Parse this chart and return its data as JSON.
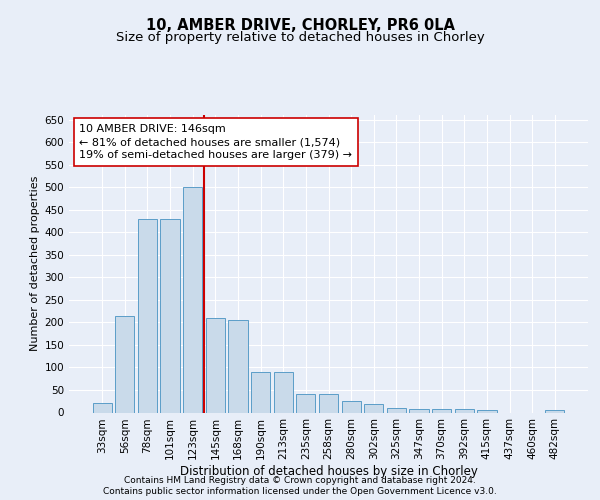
{
  "title": "10, AMBER DRIVE, CHORLEY, PR6 0LA",
  "subtitle": "Size of property relative to detached houses in Chorley",
  "xlabel": "Distribution of detached houses by size in Chorley",
  "ylabel": "Number of detached properties",
  "categories": [
    "33sqm",
    "56sqm",
    "78sqm",
    "101sqm",
    "123sqm",
    "145sqm",
    "168sqm",
    "190sqm",
    "213sqm",
    "235sqm",
    "258sqm",
    "280sqm",
    "302sqm",
    "325sqm",
    "347sqm",
    "370sqm",
    "392sqm",
    "415sqm",
    "437sqm",
    "460sqm",
    "482sqm"
  ],
  "bar_heights": [
    20,
    215,
    430,
    430,
    500,
    210,
    205,
    90,
    90,
    40,
    40,
    25,
    18,
    9,
    7,
    7,
    7,
    5,
    0,
    0,
    5
  ],
  "bar_color": "#c9daea",
  "bar_edge_color": "#5b9dc8",
  "vline_color": "#cc0000",
  "vline_pos": 4.5,
  "annotation_text_line1": "10 AMBER DRIVE: 146sqm",
  "annotation_text_line2": "← 81% of detached houses are smaller (1,574)",
  "annotation_text_line3": "19% of semi-detached houses are larger (379) →",
  "ylim": [
    0,
    660
  ],
  "yticks": [
    0,
    50,
    100,
    150,
    200,
    250,
    300,
    350,
    400,
    450,
    500,
    550,
    600,
    650
  ],
  "background_color": "#e8eef8",
  "plot_bg_color": "#e8eef8",
  "grid_color": "#ffffff",
  "title_fontsize": 10.5,
  "subtitle_fontsize": 9.5,
  "xlabel_fontsize": 8.5,
  "ylabel_fontsize": 8,
  "tick_fontsize": 7.5,
  "annotation_fontsize": 8,
  "footer_line1": "Contains HM Land Registry data © Crown copyright and database right 2024.",
  "footer_line2": "Contains public sector information licensed under the Open Government Licence v3.0.",
  "footer_fontsize": 6.5
}
